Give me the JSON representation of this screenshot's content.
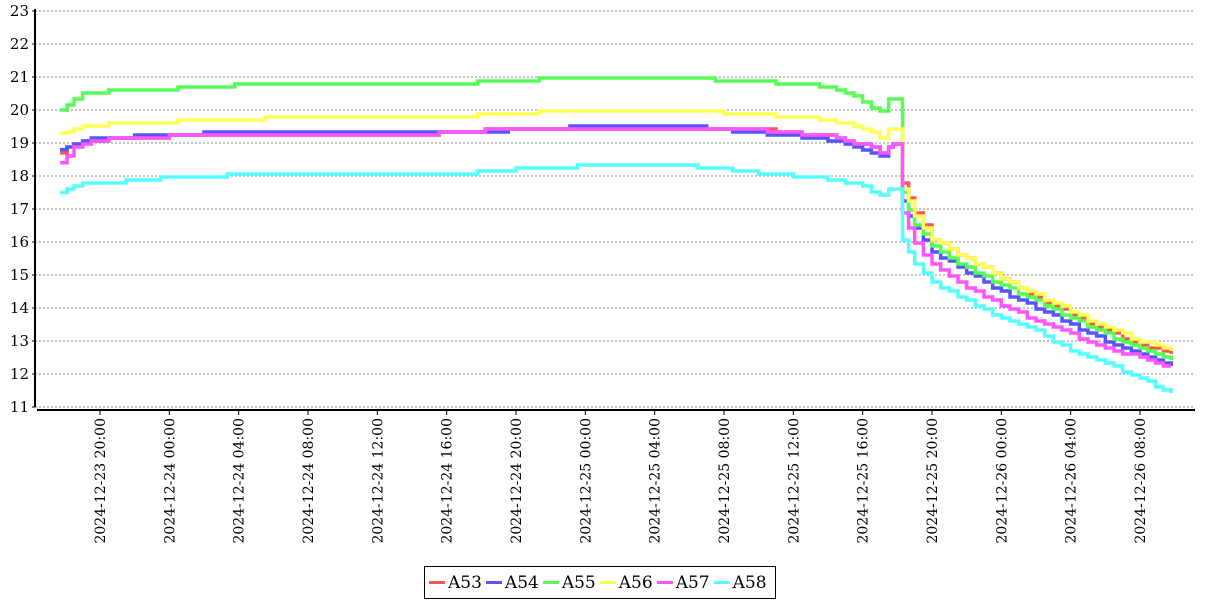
{
  "chart_data": {
    "type": "line",
    "title": "",
    "xlabel": "",
    "ylabel": "",
    "x_unit": "hours since 2024-12-23 00:00",
    "xlim": [
      16.3,
      83.5
    ],
    "ylim": [
      11,
      23
    ],
    "yticks": [
      11,
      12,
      13,
      14,
      15,
      16,
      17,
      18,
      19,
      20,
      21,
      22,
      23
    ],
    "xticks": [
      {
        "x": 20,
        "label": "2024-12-23  20:00"
      },
      {
        "x": 24,
        "label": "2024-12-24  00:00"
      },
      {
        "x": 28,
        "label": "2024-12-24  04:00"
      },
      {
        "x": 32,
        "label": "2024-12-24  08:00"
      },
      {
        "x": 36,
        "label": "2024-12-24  12:00"
      },
      {
        "x": 40,
        "label": "2024-12-24  16:00"
      },
      {
        "x": 44,
        "label": "2024-12-24  20:00"
      },
      {
        "x": 48,
        "label": "2024-12-25  00:00"
      },
      {
        "x": 52,
        "label": "2024-12-25  04:00"
      },
      {
        "x": 56,
        "label": "2024-12-25  08:00"
      },
      {
        "x": 60,
        "label": "2024-12-25  12:00"
      },
      {
        "x": 64,
        "label": "2024-12-25  16:00"
      },
      {
        "x": 68,
        "label": "2024-12-25  20:00"
      },
      {
        "x": 72,
        "label": "2024-12-26  00:00"
      },
      {
        "x": 76,
        "label": "2024-12-26  04:00"
      },
      {
        "x": 80,
        "label": "2024-12-26  08:00"
      }
    ],
    "grid": true,
    "legend_position": "bottom",
    "x": [
      17.7,
      18.5,
      19,
      20,
      22,
      24,
      26,
      30,
      32,
      36,
      40,
      44,
      48,
      50,
      52,
      54,
      56,
      58,
      60,
      62,
      63.5,
      64.5,
      65,
      65.5,
      65.75,
      66.3,
      67,
      68,
      70,
      72,
      74,
      76,
      78,
      80,
      81.8
    ],
    "series": [
      {
        "name": "A53",
        "color": "#ff5555",
        "values": [
          18.7,
          19.0,
          19.05,
          19.1,
          19.15,
          19.2,
          19.2,
          19.2,
          19.2,
          19.2,
          19.3,
          19.45,
          19.45,
          19.45,
          19.45,
          19.45,
          19.45,
          19.45,
          19.3,
          19.2,
          19.0,
          18.85,
          18.7,
          18.9,
          19.0,
          17.8,
          16.9,
          16.1,
          15.5,
          14.9,
          14.3,
          13.8,
          13.3,
          12.9,
          12.6
        ]
      },
      {
        "name": "A54",
        "color": "#5555ff",
        "values": [
          18.8,
          19.0,
          19.1,
          19.15,
          19.2,
          19.25,
          19.3,
          19.3,
          19.3,
          19.3,
          19.3,
          19.4,
          19.5,
          19.5,
          19.5,
          19.5,
          19.4,
          19.3,
          19.2,
          19.1,
          18.9,
          18.7,
          18.6,
          18.9,
          19.0,
          17.2,
          16.4,
          15.7,
          15.1,
          14.5,
          14.0,
          13.5,
          13.0,
          12.6,
          12.2
        ]
      },
      {
        "name": "A55",
        "color": "#55ff55",
        "values": [
          20.0,
          20.3,
          20.5,
          20.55,
          20.6,
          20.65,
          20.7,
          20.8,
          20.75,
          20.8,
          20.8,
          20.9,
          21.0,
          21.0,
          21.0,
          20.95,
          20.9,
          20.85,
          20.8,
          20.7,
          20.4,
          20.1,
          20.0,
          20.3,
          20.3,
          17.5,
          16.5,
          15.9,
          15.2,
          14.7,
          14.2,
          13.7,
          13.2,
          12.8,
          12.4
        ]
      },
      {
        "name": "A56",
        "color": "#ffff55",
        "values": [
          19.3,
          19.4,
          19.5,
          19.55,
          19.6,
          19.65,
          19.7,
          19.75,
          19.75,
          19.8,
          19.8,
          19.9,
          20.0,
          20.0,
          20.0,
          20.0,
          19.9,
          19.85,
          19.8,
          19.7,
          19.5,
          19.3,
          19.15,
          19.4,
          19.4,
          17.6,
          16.8,
          16.1,
          15.5,
          14.9,
          14.4,
          13.9,
          13.4,
          13.0,
          12.7
        ]
      },
      {
        "name": "A57",
        "color": "#ff55ff",
        "values": [
          18.4,
          18.9,
          19.0,
          19.1,
          19.15,
          19.2,
          19.2,
          19.2,
          19.2,
          19.2,
          19.3,
          19.45,
          19.45,
          19.45,
          19.45,
          19.45,
          19.45,
          19.4,
          19.3,
          19.2,
          19.0,
          18.85,
          18.7,
          18.9,
          19.0,
          16.9,
          16.0,
          15.3,
          14.6,
          14.1,
          13.6,
          13.2,
          12.8,
          12.5,
          12.2
        ]
      },
      {
        "name": "A58",
        "color": "#55ffff",
        "values": [
          17.5,
          17.7,
          17.8,
          17.8,
          17.85,
          17.95,
          18.0,
          18.05,
          18.05,
          18.05,
          18.05,
          18.2,
          18.3,
          18.3,
          18.35,
          18.3,
          18.2,
          18.1,
          18.0,
          17.9,
          17.8,
          17.55,
          17.45,
          17.6,
          17.6,
          16.1,
          15.3,
          14.8,
          14.2,
          13.7,
          13.3,
          12.7,
          12.3,
          11.9,
          11.4
        ]
      }
    ]
  }
}
